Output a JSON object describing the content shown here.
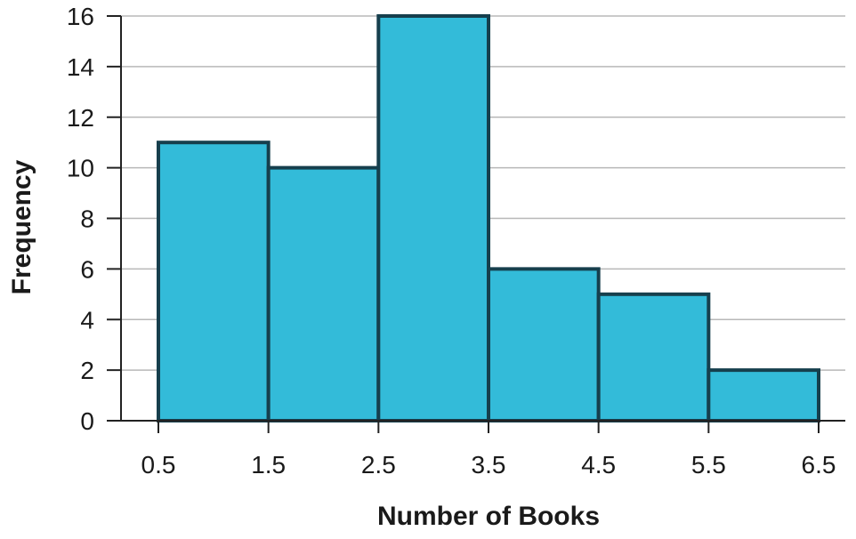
{
  "chart_data": {
    "type": "bar",
    "subtype": "histogram",
    "title": "",
    "xlabel": "Number of Books",
    "ylabel": "Frequency",
    "bin_edges": [
      0.5,
      1.5,
      2.5,
      3.5,
      4.5,
      5.5,
      6.5
    ],
    "x_tick_labels": [
      "0.5",
      "1.5",
      "2.5",
      "3.5",
      "4.5",
      "5.5",
      "6.5"
    ],
    "values": [
      11,
      10,
      16,
      6,
      5,
      2
    ],
    "ylim": [
      0,
      16
    ],
    "y_ticks": [
      0,
      2,
      4,
      6,
      8,
      10,
      12,
      14,
      16
    ],
    "y_tick_labels": [
      "0",
      "2",
      "4",
      "6",
      "8",
      "10",
      "12",
      "14",
      "16"
    ],
    "grid": "horizontal",
    "legend": "none",
    "colors": {
      "bar_fill": "#33bbd9",
      "bar_stroke": "#163f4d",
      "grid": "#b8b8b8",
      "axis": "#222222"
    }
  }
}
